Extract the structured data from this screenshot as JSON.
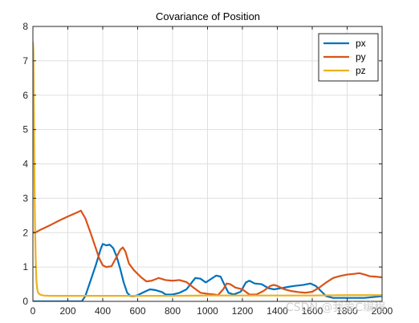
{
  "chart_data": {
    "type": "line",
    "title": "Covariance of Position",
    "xlabel": "",
    "ylabel": "",
    "xlim": [
      0,
      2000
    ],
    "ylim": [
      0,
      8
    ],
    "x_ticks": [
      0,
      200,
      400,
      600,
      800,
      1000,
      1200,
      1400,
      1600,
      1800,
      2000
    ],
    "y_ticks": [
      0,
      1,
      2,
      3,
      4,
      5,
      6,
      7,
      8
    ],
    "grid": true,
    "legend_position": "top-right",
    "series": [
      {
        "name": "px",
        "color": "#0072BD",
        "points": [
          [
            0,
            0.0
          ],
          [
            100,
            0.0
          ],
          [
            200,
            0.0
          ],
          [
            280,
            0.0
          ],
          [
            300,
            0.15
          ],
          [
            330,
            0.6
          ],
          [
            360,
            1.05
          ],
          [
            390,
            1.55
          ],
          [
            400,
            1.67
          ],
          [
            420,
            1.63
          ],
          [
            440,
            1.65
          ],
          [
            460,
            1.55
          ],
          [
            480,
            1.3
          ],
          [
            500,
            0.95
          ],
          [
            520,
            0.55
          ],
          [
            540,
            0.25
          ],
          [
            560,
            0.15
          ],
          [
            580,
            0.15
          ],
          [
            600,
            0.18
          ],
          [
            640,
            0.28
          ],
          [
            670,
            0.35
          ],
          [
            700,
            0.33
          ],
          [
            740,
            0.27
          ],
          [
            760,
            0.2
          ],
          [
            800,
            0.2
          ],
          [
            840,
            0.25
          ],
          [
            880,
            0.35
          ],
          [
            910,
            0.55
          ],
          [
            930,
            0.68
          ],
          [
            960,
            0.66
          ],
          [
            990,
            0.55
          ],
          [
            1020,
            0.65
          ],
          [
            1050,
            0.75
          ],
          [
            1075,
            0.72
          ],
          [
            1100,
            0.45
          ],
          [
            1120,
            0.25
          ],
          [
            1150,
            0.2
          ],
          [
            1190,
            0.28
          ],
          [
            1220,
            0.55
          ],
          [
            1240,
            0.6
          ],
          [
            1270,
            0.52
          ],
          [
            1310,
            0.5
          ],
          [
            1350,
            0.38
          ],
          [
            1380,
            0.35
          ],
          [
            1420,
            0.38
          ],
          [
            1460,
            0.42
          ],
          [
            1500,
            0.45
          ],
          [
            1550,
            0.48
          ],
          [
            1590,
            0.52
          ],
          [
            1620,
            0.45
          ],
          [
            1650,
            0.3
          ],
          [
            1680,
            0.15
          ],
          [
            1720,
            0.1
          ],
          [
            1800,
            0.1
          ],
          [
            1900,
            0.1
          ],
          [
            2000,
            0.15
          ]
        ]
      },
      {
        "name": "py",
        "color": "#D95319",
        "points": [
          [
            0,
            2.0
          ],
          [
            20,
            2.02
          ],
          [
            50,
            2.1
          ],
          [
            100,
            2.22
          ],
          [
            150,
            2.35
          ],
          [
            200,
            2.47
          ],
          [
            250,
            2.58
          ],
          [
            275,
            2.64
          ],
          [
            300,
            2.42
          ],
          [
            330,
            2.0
          ],
          [
            360,
            1.55
          ],
          [
            380,
            1.25
          ],
          [
            400,
            1.05
          ],
          [
            420,
            1.0
          ],
          [
            450,
            1.02
          ],
          [
            480,
            1.3
          ],
          [
            500,
            1.5
          ],
          [
            515,
            1.57
          ],
          [
            530,
            1.45
          ],
          [
            550,
            1.1
          ],
          [
            580,
            0.9
          ],
          [
            620,
            0.7
          ],
          [
            650,
            0.58
          ],
          [
            680,
            0.6
          ],
          [
            720,
            0.68
          ],
          [
            760,
            0.62
          ],
          [
            800,
            0.6
          ],
          [
            840,
            0.62
          ],
          [
            880,
            0.56
          ],
          [
            920,
            0.4
          ],
          [
            960,
            0.25
          ],
          [
            1000,
            0.22
          ],
          [
            1040,
            0.2
          ],
          [
            1060,
            0.18
          ],
          [
            1090,
            0.35
          ],
          [
            1110,
            0.52
          ],
          [
            1130,
            0.5
          ],
          [
            1160,
            0.4
          ],
          [
            1200,
            0.35
          ],
          [
            1240,
            0.2
          ],
          [
            1280,
            0.2
          ],
          [
            1320,
            0.3
          ],
          [
            1360,
            0.45
          ],
          [
            1380,
            0.48
          ],
          [
            1400,
            0.45
          ],
          [
            1440,
            0.35
          ],
          [
            1480,
            0.3
          ],
          [
            1520,
            0.27
          ],
          [
            1560,
            0.25
          ],
          [
            1600,
            0.28
          ],
          [
            1640,
            0.4
          ],
          [
            1680,
            0.55
          ],
          [
            1720,
            0.68
          ],
          [
            1760,
            0.74
          ],
          [
            1800,
            0.78
          ],
          [
            1840,
            0.8
          ],
          [
            1870,
            0.82
          ],
          [
            1900,
            0.78
          ],
          [
            1930,
            0.73
          ],
          [
            1960,
            0.72
          ],
          [
            2000,
            0.7
          ]
        ]
      },
      {
        "name": "pz",
        "color": "#EDB120",
        "points": [
          [
            0,
            7.55
          ],
          [
            3,
            7.3
          ],
          [
            6,
            5.5
          ],
          [
            9,
            3.5
          ],
          [
            12,
            2.2
          ],
          [
            16,
            1.2
          ],
          [
            20,
            0.6
          ],
          [
            25,
            0.35
          ],
          [
            30,
            0.25
          ],
          [
            40,
            0.2
          ],
          [
            60,
            0.17
          ],
          [
            100,
            0.16
          ],
          [
            200,
            0.16
          ],
          [
            400,
            0.16
          ],
          [
            600,
            0.16
          ],
          [
            800,
            0.16
          ],
          [
            1000,
            0.17
          ],
          [
            1200,
            0.17
          ],
          [
            1400,
            0.17
          ],
          [
            1600,
            0.17
          ],
          [
            1800,
            0.18
          ],
          [
            1900,
            0.18
          ],
          [
            2000,
            0.18
          ]
        ]
      }
    ]
  },
  "watermark": "CSDN @我爱C编程"
}
